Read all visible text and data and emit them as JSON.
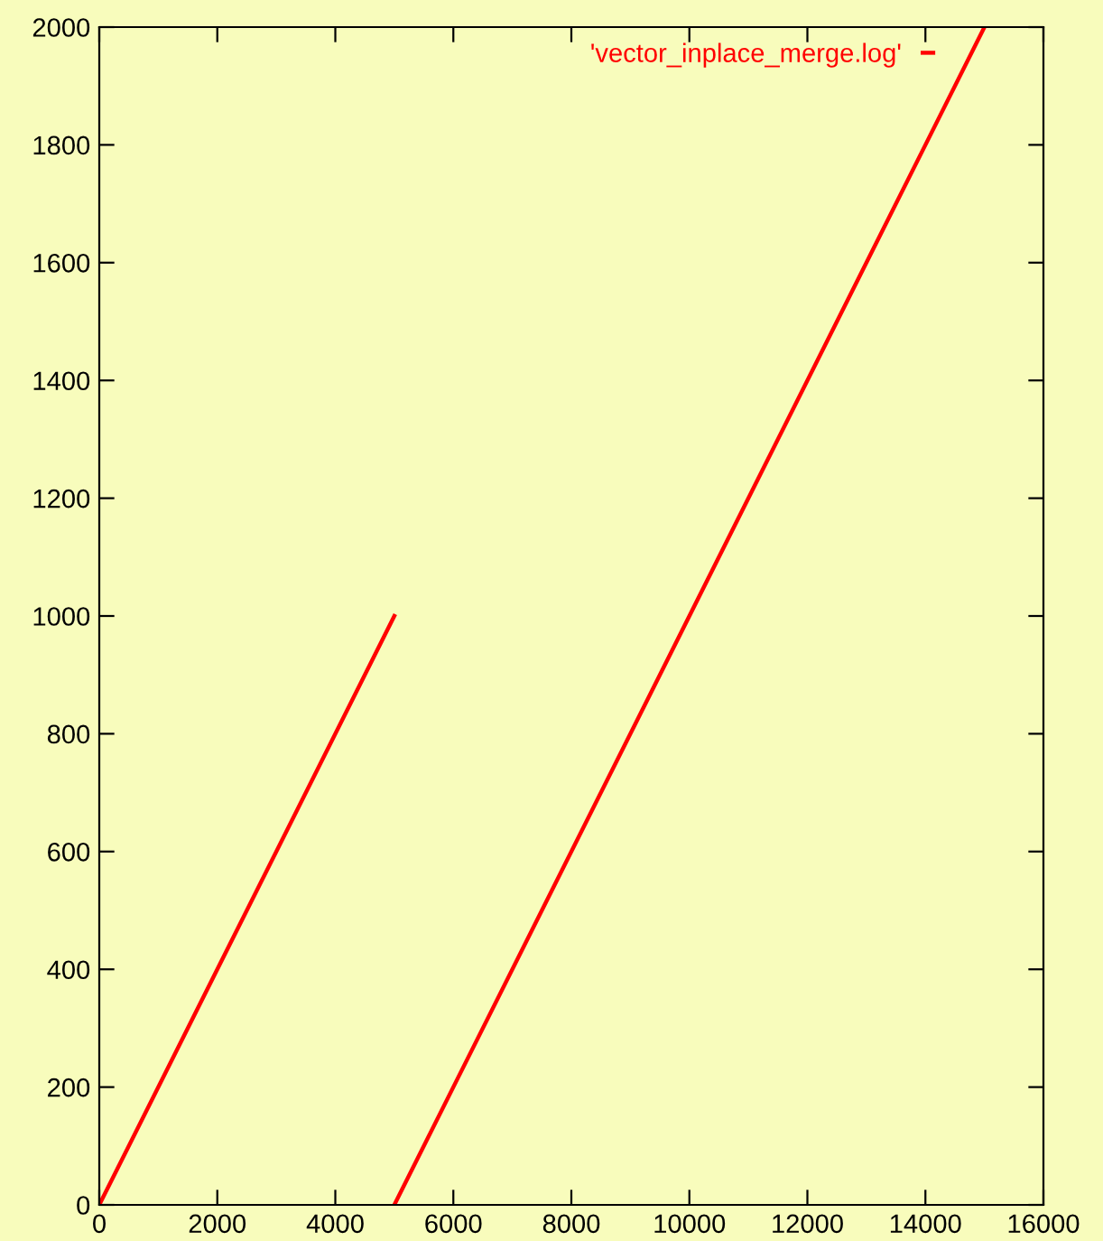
{
  "chart_data": {
    "type": "line",
    "x": [
      0,
      5000,
      null,
      5000,
      15000
    ],
    "series": [
      {
        "name": "'vector_inplace_merge.log'",
        "color": "#ff0000",
        "values": [
          0,
          1000,
          null,
          0,
          2000
        ]
      }
    ],
    "xlim": [
      0,
      16000
    ],
    "xticks": [
      0,
      2000,
      4000,
      6000,
      8000,
      10000,
      12000,
      14000,
      16000
    ],
    "ylim": [
      0,
      2000
    ],
    "yticks": [
      0,
      200,
      400,
      600,
      800,
      1000,
      1200,
      1400,
      1600,
      1800,
      2000
    ],
    "grid": false,
    "legend": "top right",
    "line_style": "solid"
  }
}
